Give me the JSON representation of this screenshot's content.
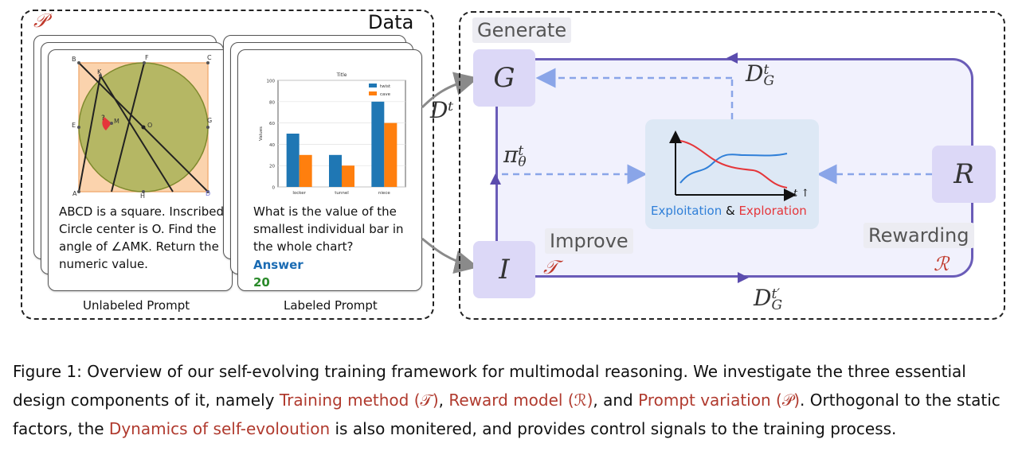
{
  "data_panel": {
    "title": "Data",
    "symbol": "𝒫",
    "unlabeled": {
      "text": "ABCD is a square. Inscribed Circle center is O. Find the angle of ∠AMK. Return the numeric value.",
      "label": "Unlabeled Prompt",
      "points": [
        "B",
        "K",
        "F",
        "C",
        "E",
        "M",
        "O",
        "G",
        "A",
        "H",
        "D"
      ],
      "angle_mark": "?"
    },
    "labeled": {
      "question": "What is the value of the smallest individual bar in the whole chart?",
      "answer_label": "Answer",
      "answer_value": "20",
      "label": "Labeled Prompt"
    },
    "edge_label": "Dᵗ"
  },
  "chart_data": {
    "type": "bar",
    "title": "Title",
    "xlabel": "",
    "ylabel": "Values",
    "categories": [
      "locker",
      "tunnel",
      "niece"
    ],
    "series": [
      {
        "name": "twist",
        "values": [
          50,
          30,
          80
        ],
        "color": "#1f77b4"
      },
      {
        "name": "cave",
        "values": [
          30,
          20,
          60
        ],
        "color": "#ff7f0e"
      }
    ],
    "ylim": [
      0,
      100
    ],
    "yticks": [
      "0",
      "20",
      "40",
      "60",
      "80",
      "100"
    ],
    "legend_position": "top-right"
  },
  "framework": {
    "generate_label": "Generate",
    "improve_label": "Improve",
    "rewarding_label": "Rewarding",
    "node_g": "G",
    "node_i": "I",
    "node_r": "R",
    "symbol_t": "𝒯",
    "symbol_r": "ℛ",
    "dgt_top": "D",
    "dgt_sup": "t",
    "dgt_sub": "G",
    "dgt_bottom_sup": "t′",
    "pi_label": "π",
    "pi_sup": "t",
    "pi_sub": "θ",
    "plot": {
      "axis_label": "t ↑",
      "exploitation": "Exploitation",
      "amp": " & ",
      "exploration": "Exploration",
      "exploitation_color": "#2f7fd8",
      "exploration_color": "#e5363a"
    }
  },
  "caption": {
    "prefix": "Figure 1: Overview of our self-evolving training framework for multimodal reasoning. We investigate the three essential design components of it, namely ",
    "training": "Training method (𝒯)",
    "sep1": ", ",
    "reward": "Reward model (ℛ)",
    "sep2": ", and ",
    "prompt": "Prompt variation (𝒫)",
    "mid": ". Orthogonal to the static factors, the ",
    "dynamics": "Dynamics of self-evoloution",
    "suffix": " is also monitered, and provides control signals to the training process."
  }
}
